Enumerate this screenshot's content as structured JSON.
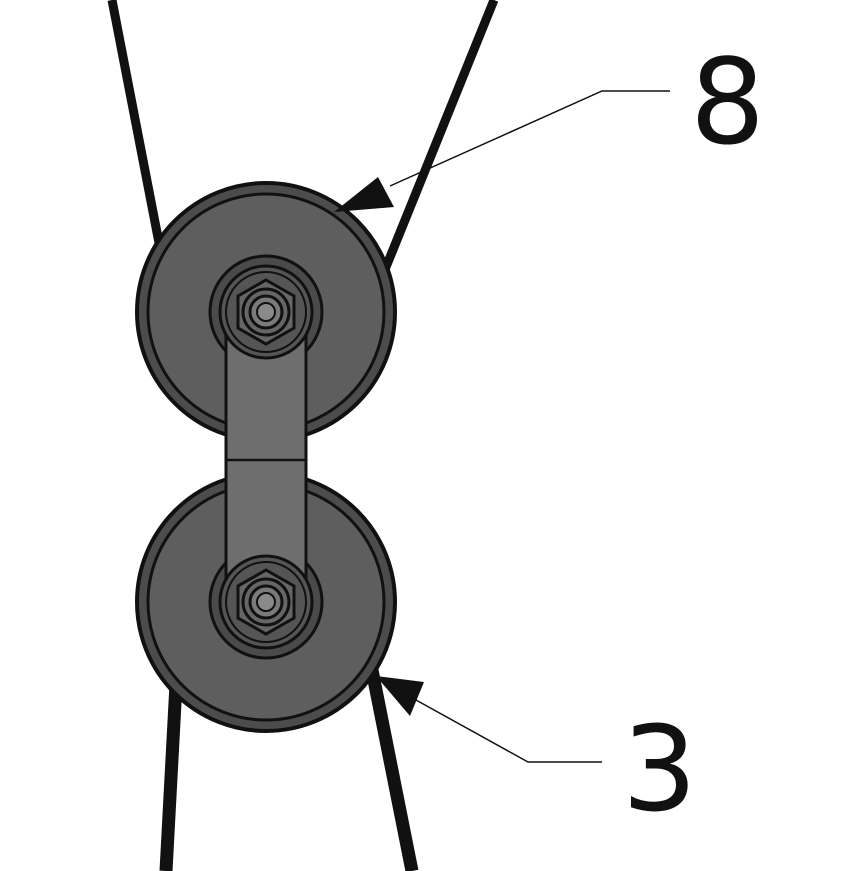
{
  "callouts": [
    {
      "id": "callout-8",
      "label": "8"
    },
    {
      "id": "callout-3",
      "label": "3"
    }
  ],
  "colors": {
    "background": "#ffffff",
    "line": "#111111",
    "pulley_face": "#5a5a5a",
    "pulley_groove": "#6a6a6a",
    "link_plate": "#6e6e6e",
    "hub": "#555555"
  }
}
